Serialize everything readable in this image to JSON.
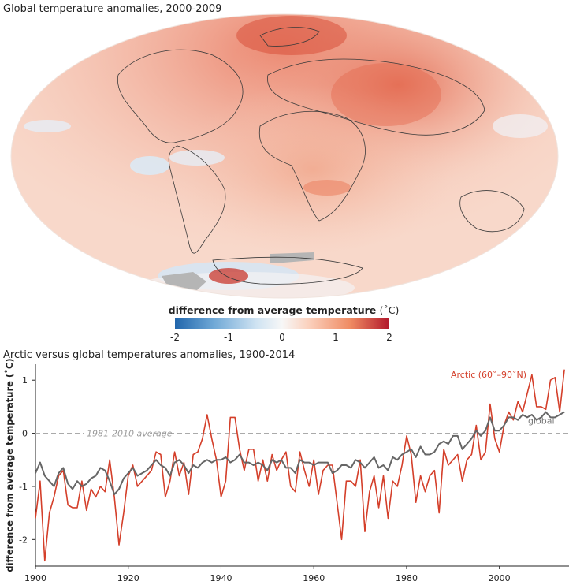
{
  "map": {
    "title": "Global temperature anomalies, 2000-2009",
    "colorbar": {
      "title": "difference from average temperature",
      "unit": "(˚C)",
      "ticks": [
        "-2",
        "-1",
        "0",
        "1",
        "2"
      ],
      "range": [
        -2,
        2
      ],
      "colors": [
        "#2166ac",
        "#6fa8d6",
        "#cfe3f2",
        "#f7f7f7",
        "#fbd2bf",
        "#ef8a62",
        "#b2182b"
      ]
    }
  },
  "chart_data": {
    "type": "line",
    "title": "Arctic versus global temperatures anomalies, 1900-2014",
    "ylabel": "difference from average temperature (˚C)",
    "xlim": [
      1900,
      2015
    ],
    "ylim": [
      -2.5,
      1.3
    ],
    "x_ticks": [
      1900,
      1920,
      1940,
      1960,
      1980,
      2000
    ],
    "y_ticks": [
      -2,
      -1,
      0,
      1
    ],
    "y_tick_labels": [
      "-2",
      "-1",
      "0",
      "1"
    ],
    "reference_line": {
      "y": 0,
      "label": "1981-2010 average"
    },
    "series": [
      {
        "name": "Arctic (60˚–90˚N)",
        "color": "#d43f2a",
        "x": [
          1900,
          1901,
          1902,
          1903,
          1904,
          1905,
          1906,
          1907,
          1908,
          1909,
          1910,
          1911,
          1912,
          1913,
          1914,
          1915,
          1916,
          1917,
          1918,
          1919,
          1920,
          1921,
          1922,
          1923,
          1924,
          1925,
          1926,
          1927,
          1928,
          1929,
          1930,
          1931,
          1932,
          1933,
          1934,
          1935,
          1936,
          1937,
          1938,
          1939,
          1940,
          1941,
          1942,
          1943,
          1944,
          1945,
          1946,
          1947,
          1948,
          1949,
          1950,
          1951,
          1952,
          1953,
          1954,
          1955,
          1956,
          1957,
          1958,
          1959,
          1960,
          1961,
          1962,
          1963,
          1964,
          1965,
          1966,
          1967,
          1968,
          1969,
          1970,
          1971,
          1972,
          1973,
          1974,
          1975,
          1976,
          1977,
          1978,
          1979,
          1980,
          1981,
          1982,
          1983,
          1984,
          1985,
          1986,
          1987,
          1988,
          1989,
          1990,
          1991,
          1992,
          1993,
          1994,
          1995,
          1996,
          1997,
          1998,
          1999,
          2000,
          2001,
          2002,
          2003,
          2004,
          2005,
          2006,
          2007,
          2008,
          2009,
          2010,
          2011,
          2012,
          2013,
          2014
        ],
        "values": [
          -1.6,
          -0.9,
          -2.4,
          -1.5,
          -1.2,
          -0.8,
          -0.7,
          -1.35,
          -1.4,
          -1.4,
          -0.9,
          -1.45,
          -1.05,
          -1.2,
          -1.0,
          -1.1,
          -0.5,
          -1.2,
          -2.1,
          -1.5,
          -0.8,
          -0.6,
          -1.0,
          -0.9,
          -0.8,
          -0.7,
          -0.35,
          -0.4,
          -1.2,
          -0.9,
          -0.35,
          -0.8,
          -0.55,
          -1.15,
          -0.4,
          -0.35,
          -0.1,
          0.35,
          -0.1,
          -0.5,
          -1.2,
          -0.9,
          0.3,
          0.3,
          -0.3,
          -0.7,
          -0.3,
          -0.3,
          -0.9,
          -0.5,
          -0.9,
          -0.4,
          -0.7,
          -0.5,
          -0.35,
          -1.0,
          -1.1,
          -0.35,
          -0.7,
          -1.0,
          -0.5,
          -1.15,
          -0.7,
          -0.6,
          -0.6,
          -1.3,
          -2.0,
          -0.9,
          -0.9,
          -1.0,
          -0.5,
          -1.85,
          -1.1,
          -0.8,
          -1.4,
          -0.8,
          -1.6,
          -0.9,
          -1.0,
          -0.6,
          -0.05,
          -0.4,
          -1.3,
          -0.8,
          -1.1,
          -0.8,
          -0.7,
          -1.5,
          -0.3,
          -0.6,
          -0.5,
          -0.4,
          -0.9,
          -0.5,
          -0.4,
          0.15,
          -0.5,
          -0.35,
          0.55,
          -0.1,
          -0.35,
          0.15,
          0.4,
          0.25,
          0.6,
          0.4,
          0.75,
          1.1,
          0.5,
          0.5,
          0.45,
          1.0,
          1.05,
          0.4,
          1.2
        ]
      },
      {
        "name": "global",
        "color": "#666666",
        "x": [
          1900,
          1901,
          1902,
          1903,
          1904,
          1905,
          1906,
          1907,
          1908,
          1909,
          1910,
          1911,
          1912,
          1913,
          1914,
          1915,
          1916,
          1917,
          1918,
          1919,
          1920,
          1921,
          1922,
          1923,
          1924,
          1925,
          1926,
          1927,
          1928,
          1929,
          1930,
          1931,
          1932,
          1933,
          1934,
          1935,
          1936,
          1937,
          1938,
          1939,
          1940,
          1941,
          1942,
          1943,
          1944,
          1945,
          1946,
          1947,
          1948,
          1949,
          1950,
          1951,
          1952,
          1953,
          1954,
          1955,
          1956,
          1957,
          1958,
          1959,
          1960,
          1961,
          1962,
          1963,
          1964,
          1965,
          1966,
          1967,
          1968,
          1969,
          1970,
          1971,
          1972,
          1973,
          1974,
          1975,
          1976,
          1977,
          1978,
          1979,
          1980,
          1981,
          1982,
          1983,
          1984,
          1985,
          1986,
          1987,
          1988,
          1989,
          1990,
          1991,
          1992,
          1993,
          1994,
          1995,
          1996,
          1997,
          1998,
          1999,
          2000,
          2001,
          2002,
          2003,
          2004,
          2005,
          2006,
          2007,
          2008,
          2009,
          2010,
          2011,
          2012,
          2013,
          2014
        ],
        "values": [
          -0.75,
          -0.55,
          -0.8,
          -0.9,
          -1.0,
          -0.75,
          -0.65,
          -0.95,
          -1.05,
          -0.9,
          -1.0,
          -0.95,
          -0.85,
          -0.8,
          -0.65,
          -0.7,
          -0.9,
          -1.15,
          -1.05,
          -0.85,
          -0.75,
          -0.65,
          -0.8,
          -0.75,
          -0.7,
          -0.6,
          -0.5,
          -0.6,
          -0.65,
          -0.8,
          -0.55,
          -0.5,
          -0.6,
          -0.75,
          -0.6,
          -0.65,
          -0.55,
          -0.5,
          -0.55,
          -0.5,
          -0.5,
          -0.45,
          -0.55,
          -0.5,
          -0.4,
          -0.55,
          -0.55,
          -0.6,
          -0.55,
          -0.6,
          -0.7,
          -0.5,
          -0.55,
          -0.5,
          -0.65,
          -0.65,
          -0.75,
          -0.5,
          -0.55,
          -0.55,
          -0.6,
          -0.55,
          -0.55,
          -0.55,
          -0.75,
          -0.7,
          -0.6,
          -0.6,
          -0.65,
          -0.5,
          -0.55,
          -0.65,
          -0.55,
          -0.45,
          -0.65,
          -0.6,
          -0.7,
          -0.45,
          -0.5,
          -0.4,
          -0.35,
          -0.3,
          -0.45,
          -0.25,
          -0.4,
          -0.4,
          -0.35,
          -0.2,
          -0.15,
          -0.2,
          -0.05,
          -0.05,
          -0.3,
          -0.2,
          -0.1,
          0.05,
          -0.05,
          0.05,
          0.3,
          0.05,
          0.05,
          0.15,
          0.3,
          0.3,
          0.25,
          0.35,
          0.3,
          0.35,
          0.25,
          0.3,
          0.4,
          0.3,
          0.3,
          0.35,
          0.4
        ]
      }
    ],
    "series_labels": [
      "Arctic (60˚–90˚N)",
      "global"
    ]
  }
}
